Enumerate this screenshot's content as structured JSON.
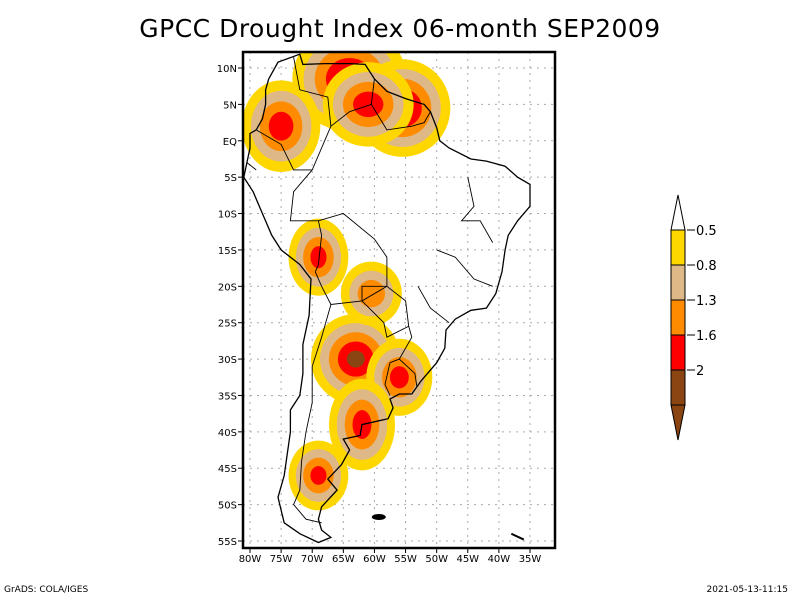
{
  "title": "GPCC Drought Index 06-month SEP2009",
  "map": {
    "region": "South America",
    "lon_range_deg": [
      -81,
      -31
    ],
    "lat_range_deg": [
      -56,
      12
    ],
    "lat_ticks": [
      {
        "value": 10,
        "label": "10N"
      },
      {
        "value": 5,
        "label": "5N"
      },
      {
        "value": 0,
        "label": "EQ"
      },
      {
        "value": -5,
        "label": "5S"
      },
      {
        "value": -10,
        "label": "10S"
      },
      {
        "value": -15,
        "label": "15S"
      },
      {
        "value": -20,
        "label": "20S"
      },
      {
        "value": -25,
        "label": "25S"
      },
      {
        "value": -30,
        "label": "30S"
      },
      {
        "value": -35,
        "label": "35S"
      },
      {
        "value": -40,
        "label": "40S"
      },
      {
        "value": -45,
        "label": "45S"
      },
      {
        "value": -50,
        "label": "50S"
      },
      {
        "value": -55,
        "label": "55S"
      }
    ],
    "lon_ticks": [
      {
        "value": -80,
        "label": "80W"
      },
      {
        "value": -75,
        "label": "75W"
      },
      {
        "value": -70,
        "label": "70W"
      },
      {
        "value": -65,
        "label": "65W"
      },
      {
        "value": -60,
        "label": "60W"
      },
      {
        "value": -55,
        "label": "55W"
      },
      {
        "value": -50,
        "label": "50W"
      },
      {
        "value": -45,
        "label": "45W"
      },
      {
        "value": -40,
        "label": "40W"
      },
      {
        "value": -35,
        "label": "35W"
      }
    ],
    "drought_regions": [
      {
        "name": "northern-venezuela-guyana",
        "level": 4,
        "lon": -64,
        "lat": 8.5,
        "rx": 5,
        "ry": 3
      },
      {
        "name": "suriname-guyana",
        "level": 4,
        "lon": -55.5,
        "lat": 4.5,
        "rx": 3.5,
        "ry": 2.5
      },
      {
        "name": "colombia-ecuador",
        "level": 3,
        "lon": -75,
        "lat": 2,
        "rx": 3,
        "ry": 3
      },
      {
        "name": "central-venezuela",
        "level": 3,
        "lon": -61,
        "lat": 5,
        "rx": 4,
        "ry": 2.5
      },
      {
        "name": "northern-argentina",
        "level": 4,
        "lon": -63,
        "lat": -30,
        "rx": 3,
        "ry": 2
      },
      {
        "name": "uruguay-southern-brazil",
        "level": 3,
        "lon": -56,
        "lat": -32.5,
        "rx": 2,
        "ry": 2
      },
      {
        "name": "pampas",
        "level": 3,
        "lon": -62,
        "lat": -39,
        "rx": 2,
        "ry": 3
      },
      {
        "name": "patagonia",
        "level": 3,
        "lon": -69,
        "lat": -46,
        "rx": 1.5,
        "ry": 1.5
      },
      {
        "name": "southern-peru-bolivia",
        "level": 3,
        "lon": -69,
        "lat": -16,
        "rx": 1.5,
        "ry": 2
      },
      {
        "name": "paraguay-bolivia",
        "level": 2,
        "lon": -60.5,
        "lat": -21,
        "rx": 2.5,
        "ry": 2
      }
    ]
  },
  "colorbar": {
    "levels": [
      {
        "label": "-0.5",
        "color": "#ffd700"
      },
      {
        "label": "-0.8",
        "color": "#deb887"
      },
      {
        "label": "-1.3",
        "color": "#ff8c00"
      },
      {
        "label": "-1.6",
        "color": "#ff0000"
      },
      {
        "label": "-2",
        "color": "#8b4513"
      }
    ],
    "top_arrow_color": "#ffffff",
    "bottom_arrow_color": "#8b4513"
  },
  "footer": {
    "left": "GrADS: COLA/IGES",
    "right": "2021-05-13-11:15"
  }
}
